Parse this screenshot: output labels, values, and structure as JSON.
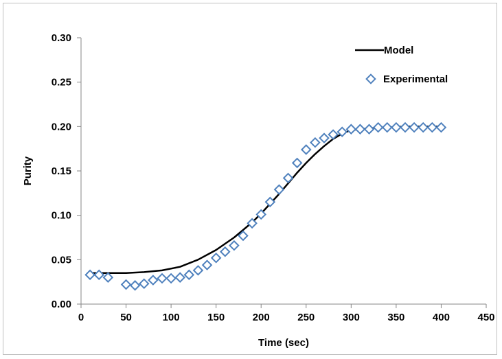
{
  "chart_data": {
    "type": "scatter",
    "xlabel": "Time (sec)",
    "ylabel": "Purity",
    "xlim": [
      0,
      450
    ],
    "ylim": [
      0,
      0.3
    ],
    "x_ticks": [
      "0",
      "50",
      "100",
      "150",
      "200",
      "250",
      "300",
      "350",
      "400",
      "450"
    ],
    "y_ticks": [
      "0.00",
      "0.05",
      "0.10",
      "0.15",
      "0.20",
      "0.25",
      "0.30"
    ],
    "grid": false,
    "legend_position": "top-right",
    "series": [
      {
        "name": "Model",
        "kind": "line",
        "color": "#000000",
        "x": [
          10,
          30,
          50,
          70,
          90,
          110,
          130,
          150,
          170,
          190,
          200,
          210,
          220,
          230,
          240,
          250,
          260,
          270,
          280,
          290,
          300,
          320,
          340,
          360,
          380,
          400
        ],
        "y": [
          0.035,
          0.035,
          0.035,
          0.036,
          0.038,
          0.042,
          0.05,
          0.061,
          0.075,
          0.092,
          0.102,
          0.113,
          0.124,
          0.136,
          0.148,
          0.159,
          0.169,
          0.178,
          0.186,
          0.192,
          0.196,
          0.198,
          0.199,
          0.2,
          0.2,
          0.2
        ]
      },
      {
        "name": "Experimental",
        "kind": "marker",
        "color": "#4f81bd",
        "x": [
          10,
          20,
          30,
          50,
          60,
          70,
          80,
          90,
          100,
          110,
          120,
          130,
          140,
          150,
          160,
          170,
          180,
          190,
          200,
          210,
          220,
          230,
          240,
          250,
          260,
          270,
          280,
          290,
          300,
          310,
          320,
          330,
          340,
          350,
          360,
          370,
          380,
          390,
          400
        ],
        "y": [
          0.033,
          0.033,
          0.03,
          0.022,
          0.021,
          0.023,
          0.027,
          0.029,
          0.029,
          0.03,
          0.033,
          0.038,
          0.044,
          0.052,
          0.059,
          0.066,
          0.077,
          0.091,
          0.101,
          0.115,
          0.129,
          0.142,
          0.159,
          0.174,
          0.182,
          0.187,
          0.191,
          0.194,
          0.197,
          0.197,
          0.197,
          0.199,
          0.199,
          0.199,
          0.199,
          0.199,
          0.199,
          0.199,
          0.199
        ]
      }
    ]
  }
}
